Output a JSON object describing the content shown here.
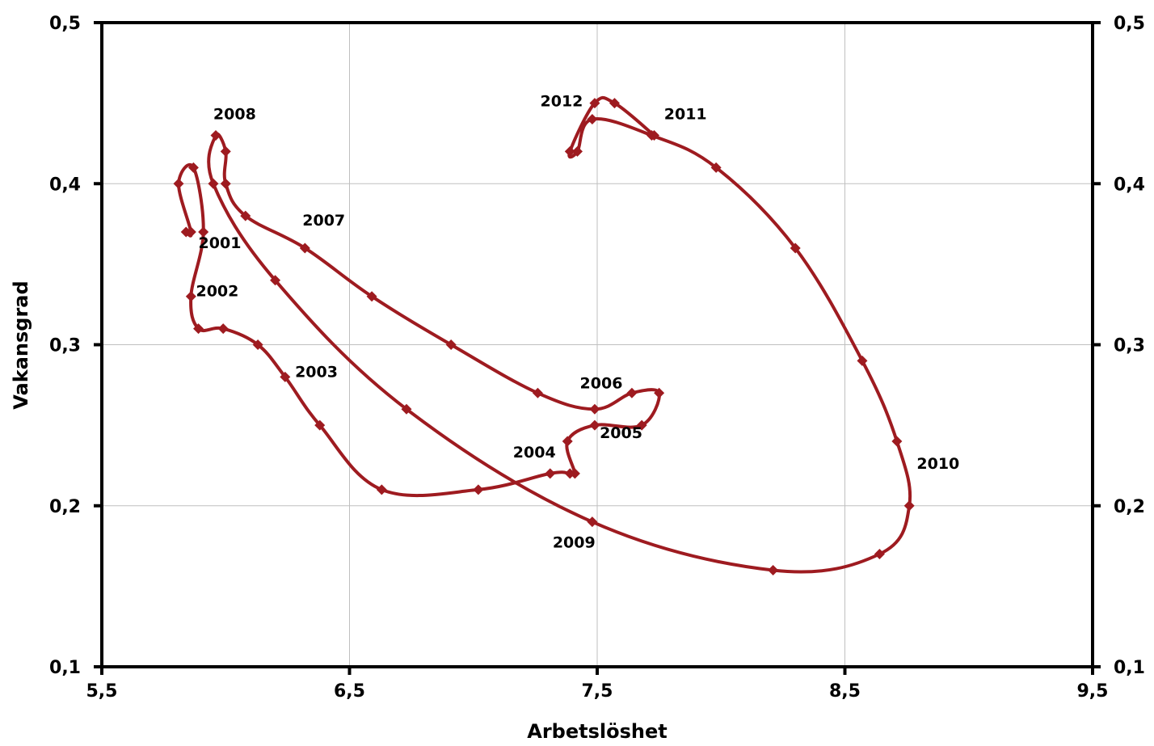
{
  "chart_data": {
    "type": "line",
    "title": "",
    "xlabel": "Arbetslöshet",
    "ylabel": "Vakansgrad",
    "xlim": [
      5.5,
      9.5
    ],
    "ylim": [
      0.1,
      0.5
    ],
    "x_ticks": [
      "5,5",
      "6,5",
      "7,5",
      "8,5",
      "9,5"
    ],
    "y_ticks": [
      "0,1",
      "0,2",
      "0,3",
      "0,4",
      "0,5"
    ],
    "y_ticks_right": [
      "0,1",
      "0,2",
      "0,3",
      "0,4",
      "0,5"
    ],
    "grid": true,
    "line_color": "#9e1b20",
    "series": [
      {
        "points": [
          [
            5.84,
            0.37
          ],
          [
            5.86,
            0.37
          ],
          [
            5.81,
            0.4
          ],
          [
            5.87,
            0.41
          ],
          [
            5.91,
            0.37
          ],
          [
            5.86,
            0.33
          ],
          [
            5.89,
            0.31
          ],
          [
            5.99,
            0.31
          ],
          [
            6.13,
            0.3
          ],
          [
            6.24,
            0.28
          ],
          [
            6.38,
            0.25
          ],
          [
            6.63,
            0.21
          ],
          [
            7.02,
            0.21
          ],
          [
            7.31,
            0.22
          ],
          [
            7.39,
            0.22
          ],
          [
            7.41,
            0.22
          ],
          [
            7.38,
            0.24
          ],
          [
            7.49,
            0.25
          ],
          [
            7.68,
            0.25
          ],
          [
            7.75,
            0.27
          ],
          [
            7.64,
            0.27
          ],
          [
            7.49,
            0.26
          ],
          [
            7.26,
            0.27
          ],
          [
            6.91,
            0.3
          ],
          [
            6.59,
            0.33
          ],
          [
            6.32,
            0.36
          ],
          [
            6.08,
            0.38
          ],
          [
            6.0,
            0.4
          ],
          [
            6.0,
            0.42
          ],
          [
            5.96,
            0.43
          ],
          [
            5.95,
            0.4
          ],
          [
            6.2,
            0.34
          ],
          [
            6.73,
            0.26
          ],
          [
            7.48,
            0.19
          ],
          [
            8.21,
            0.16
          ],
          [
            8.64,
            0.17
          ],
          [
            8.76,
            0.2
          ],
          [
            8.71,
            0.24
          ],
          [
            8.57,
            0.29
          ],
          [
            8.3,
            0.36
          ],
          [
            7.98,
            0.41
          ],
          [
            7.72,
            0.43
          ],
          [
            7.48,
            0.44
          ],
          [
            7.42,
            0.42
          ],
          [
            7.39,
            0.42
          ],
          [
            7.49,
            0.45
          ],
          [
            7.57,
            0.45
          ],
          [
            7.73,
            0.43
          ]
        ]
      }
    ],
    "year_labels": [
      {
        "text": "2001",
        "x": 5.89,
        "y": 0.36
      },
      {
        "text": "2002",
        "x": 5.88,
        "y": 0.33
      },
      {
        "text": "2003",
        "x": 6.28,
        "y": 0.28
      },
      {
        "text": "2004",
        "x": 7.16,
        "y": 0.23
      },
      {
        "text": "2005",
        "x": 7.51,
        "y": 0.242
      },
      {
        "text": "2006",
        "x": 7.43,
        "y": 0.273
      },
      {
        "text": "2007",
        "x": 6.31,
        "y": 0.374
      },
      {
        "text": "2008",
        "x": 5.95,
        "y": 0.44
      },
      {
        "text": "2009",
        "x": 7.32,
        "y": 0.174
      },
      {
        "text": "2010",
        "x": 8.79,
        "y": 0.223
      },
      {
        "text": "2011",
        "x": 7.77,
        "y": 0.44
      },
      {
        "text": "2012",
        "x": 7.27,
        "y": 0.448
      }
    ]
  }
}
